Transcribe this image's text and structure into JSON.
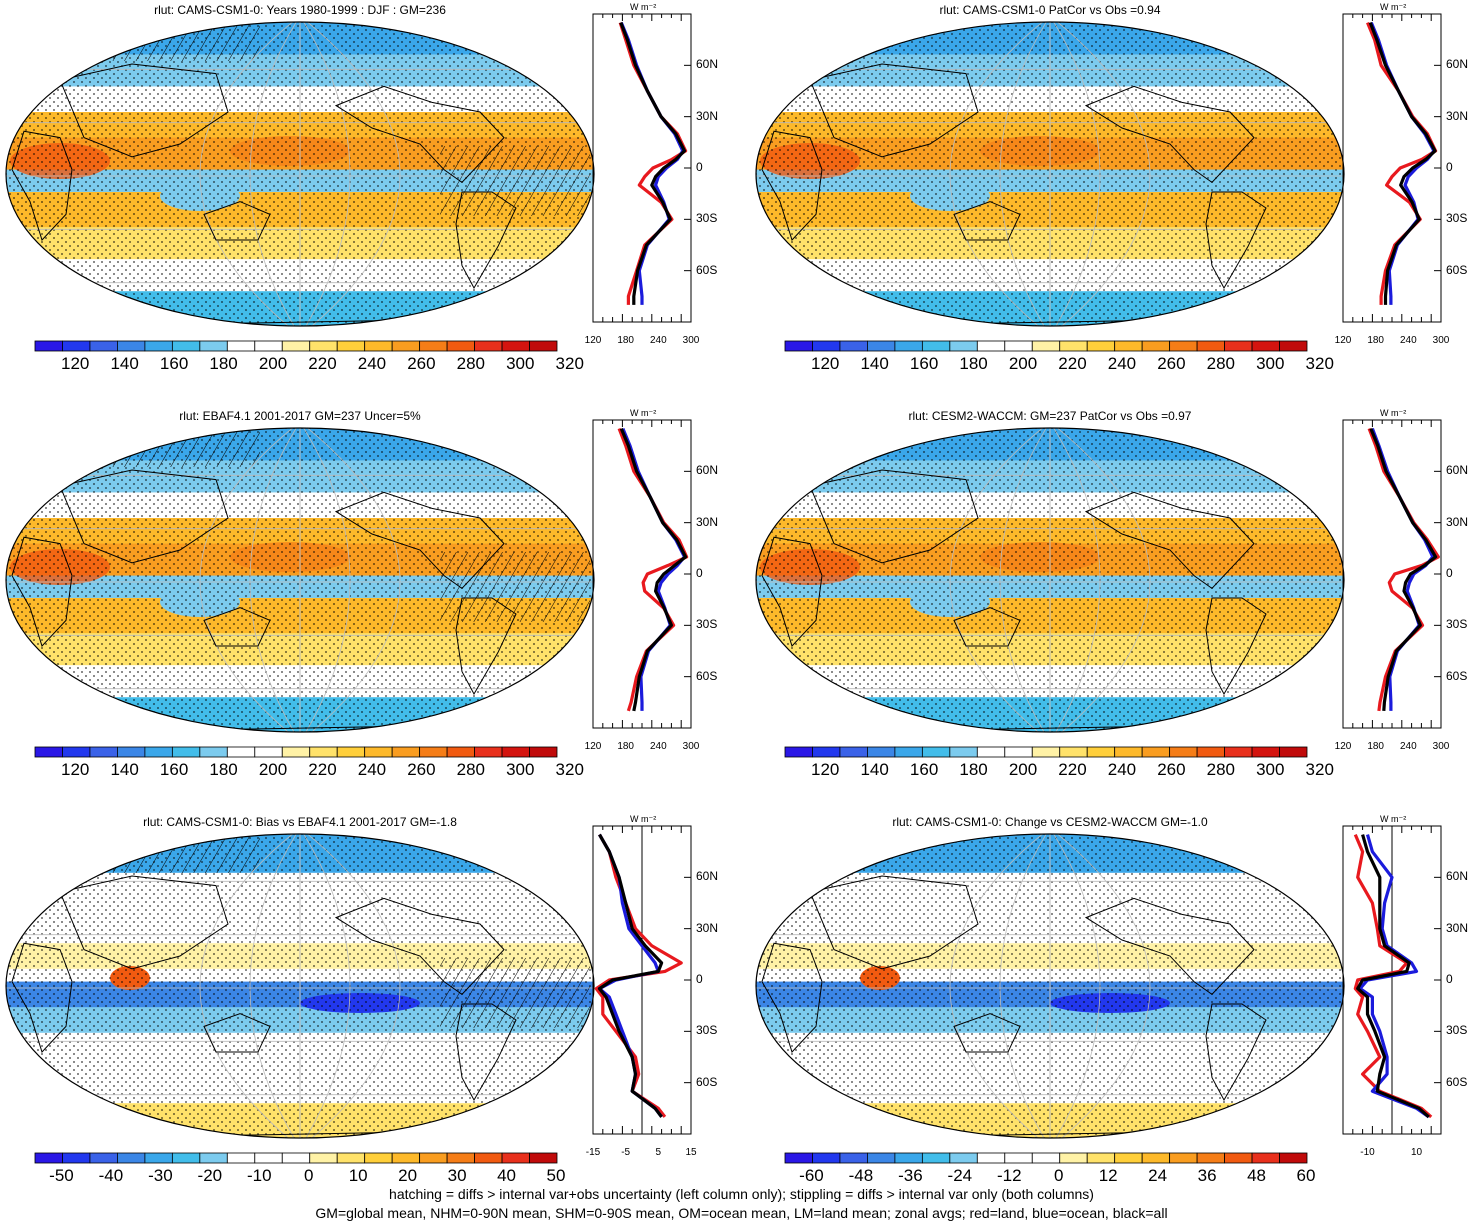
{
  "variable": "rlut",
  "profile_unit": "W m⁻²",
  "latitude_labels": [
    "60N",
    "30N",
    "0",
    "30S",
    "60S"
  ],
  "legend_colors": {
    "land": "#e8191e",
    "ocean": "#1b1bdc",
    "all": "#000000"
  },
  "footer": {
    "line1": "hatching = diffs > internal var+obs uncertainty (left column only); stippling = diffs > internal var only (both columns)",
    "line2": "GM=global mean, NHM=0-90N mean, SHM=0-90S mean, OM=ocean mean, LM=land mean; zonal avgs; red=land, blue=ocean, black=all"
  },
  "panels": [
    {
      "id": "p1",
      "title": "rlut: CAMS-CSM1-0: Years 1980-1999 : DJF : GM=236",
      "kind": "mean",
      "hatching": true,
      "colorbar_labels": [
        "120",
        "140",
        "160",
        "180",
        "200",
        "220",
        "240",
        "260",
        "280",
        "300",
        "320"
      ],
      "profile_x_labels": [
        "120",
        "180",
        "240",
        "300"
      ],
      "chart_data": {
        "type": "line",
        "xlim": [
          120,
          300
        ],
        "ylim": [
          -90,
          90
        ],
        "lat": [
          85,
          75,
          60,
          45,
          30,
          20,
          10,
          5,
          0,
          -5,
          -10,
          -20,
          -30,
          -45,
          -60,
          -75,
          -80
        ],
        "series": [
          {
            "name": "land",
            "values": [
              170,
              180,
              195,
              220,
              245,
              275,
              290,
              265,
              230,
              215,
              205,
              245,
              265,
              215,
              200,
              185,
              185
            ]
          },
          {
            "name": "ocean",
            "values": [
              172,
              185,
              200,
              220,
              245,
              270,
              285,
              275,
              255,
              240,
              235,
              250,
              260,
              220,
              205,
              210,
              210
            ]
          },
          {
            "name": "all",
            "values": [
              171,
              183,
              198,
              220,
              245,
              272,
              288,
              272,
              250,
              235,
              228,
              248,
              262,
              218,
              202,
              195,
              195
            ]
          }
        ]
      }
    },
    {
      "id": "p2",
      "title": "rlut: CAMS-CSM1-0 PatCor vs Obs =0.94",
      "kind": "mean",
      "hatching": false,
      "colorbar_labels": [
        "120",
        "140",
        "160",
        "180",
        "200",
        "220",
        "240",
        "260",
        "280",
        "300",
        "320"
      ],
      "profile_x_labels": [
        "120",
        "180",
        "240",
        "300"
      ],
      "chart_data": {
        "type": "line",
        "xlim": [
          120,
          300
        ],
        "ylim": [
          -90,
          90
        ],
        "lat": [
          85,
          75,
          60,
          45,
          30,
          20,
          10,
          5,
          0,
          -5,
          -10,
          -20,
          -30,
          -45,
          -60,
          -75,
          -80
        ],
        "series": [
          {
            "name": "land",
            "values": [
              165,
              178,
              190,
              222,
              248,
              275,
              290,
              265,
              225,
              210,
              200,
              242,
              262,
              215,
              198,
              190,
              190
            ]
          },
          {
            "name": "ocean",
            "values": [
              172,
              185,
              200,
              222,
              246,
              270,
              287,
              275,
              255,
              240,
              234,
              250,
              258,
              220,
              205,
              208,
              208
            ]
          },
          {
            "name": "all",
            "values": [
              170,
              182,
              198,
              222,
              246,
              272,
              289,
              272,
              248,
              232,
              226,
              247,
              260,
              218,
              202,
              198,
              198
            ]
          }
        ]
      }
    },
    {
      "id": "p3",
      "title": "rlut: EBAF4.1 2001-2017 GM=237 Uncer=5%",
      "kind": "mean",
      "hatching": true,
      "colorbar_labels": [
        "120",
        "140",
        "160",
        "180",
        "200",
        "220",
        "240",
        "260",
        "280",
        "300",
        "320"
      ],
      "profile_x_labels": [
        "120",
        "180",
        "240",
        "300"
      ],
      "chart_data": {
        "type": "line",
        "xlim": [
          120,
          300
        ],
        "ylim": [
          -90,
          90
        ],
        "lat": [
          85,
          75,
          60,
          45,
          30,
          20,
          10,
          5,
          0,
          -5,
          -10,
          -20,
          -30,
          -45,
          -60,
          -75,
          -80
        ],
        "series": [
          {
            "name": "land",
            "values": [
              168,
              180,
              195,
              225,
              250,
              278,
              292,
              258,
              220,
              212,
              215,
              250,
              268,
              218,
              200,
              190,
              185
            ]
          },
          {
            "name": "ocean",
            "values": [
              175,
              188,
              203,
              225,
              248,
              272,
              288,
              275,
              258,
              245,
              240,
              252,
              262,
              222,
              208,
              210,
              210
            ]
          },
          {
            "name": "all",
            "values": [
              172,
              185,
              200,
              225,
              248,
              274,
              290,
              270,
              250,
              238,
              235,
              251,
              264,
              220,
              205,
              198,
              195
            ]
          }
        ]
      }
    },
    {
      "id": "p4",
      "title": "rlut: CESM2-WACCM: GM=237 PatCor vs Obs =0.97",
      "kind": "mean",
      "hatching": false,
      "colorbar_labels": [
        "120",
        "140",
        "160",
        "180",
        "200",
        "220",
        "240",
        "260",
        "280",
        "300",
        "320"
      ],
      "profile_x_labels": [
        "120",
        "180",
        "240",
        "300"
      ],
      "chart_data": {
        "type": "line",
        "xlim": [
          120,
          300
        ],
        "ylim": [
          -90,
          90
        ],
        "lat": [
          85,
          75,
          60,
          45,
          30,
          20,
          10,
          5,
          0,
          -5,
          -10,
          -20,
          -30,
          -45,
          -60,
          -75,
          -80
        ],
        "series": [
          {
            "name": "land",
            "values": [
              168,
              180,
              195,
              224,
              250,
              275,
              295,
              265,
              215,
              205,
              210,
              248,
              266,
              216,
              198,
              188,
              186
            ]
          },
          {
            "name": "ocean",
            "values": [
              174,
              186,
              202,
              224,
              248,
              270,
              285,
              272,
              250,
              242,
              238,
              250,
              260,
              220,
              206,
              208,
              208
            ]
          },
          {
            "name": "all",
            "values": [
              171,
              184,
              199,
              224,
              248,
              272,
              290,
              270,
              244,
              235,
              232,
              249,
              262,
              218,
              203,
              196,
              195
            ]
          }
        ]
      }
    },
    {
      "id": "p5",
      "title": "rlut: CAMS-CSM1-0: Bias vs EBAF4.1 2001-2017 GM=-1.8",
      "kind": "bias",
      "hatching": true,
      "colorbar_labels": [
        "-50",
        "-40",
        "-30",
        "-20",
        "-10",
        "0",
        "10",
        "20",
        "30",
        "40",
        "50"
      ],
      "profile_x_labels": [
        "-15",
        "-5",
        "5",
        "15"
      ],
      "chart_data": {
        "type": "line",
        "xlim": [
          -15,
          15
        ],
        "ylim": [
          -90,
          90
        ],
        "lat": [
          85,
          75,
          60,
          45,
          30,
          20,
          10,
          5,
          0,
          -5,
          -10,
          -20,
          -30,
          -45,
          -55,
          -65,
          -75,
          -80
        ],
        "series": [
          {
            "name": "land",
            "values": [
              -13,
              -10,
              -8,
              -5,
              -2,
              3,
              12,
              7,
              -10,
              -14,
              -12,
              -12,
              -8,
              -2,
              -1,
              -3,
              5,
              7
            ]
          },
          {
            "name": "ocean",
            "values": [
              -13,
              -10,
              -7,
              -6,
              -4,
              0,
              4,
              5,
              -8,
              -13,
              -10,
              -8,
              -6,
              -3,
              -2,
              -3,
              4,
              6
            ]
          },
          {
            "name": "all",
            "values": [
              -13,
              -10,
              -7,
              -5,
              -3,
              1,
              6,
              5,
              -9,
              -13,
              -11,
              -9,
              -7,
              -3,
              -2,
              -3,
              4,
              6
            ]
          }
        ]
      }
    },
    {
      "id": "p6",
      "title": "rlut: CAMS-CSM1-0: Change vs CESM2-WACCM GM=-1.0",
      "kind": "bias",
      "hatching": false,
      "colorbar_labels": [
        "-60",
        "-48",
        "-36",
        "-24",
        "-12",
        "0",
        "12",
        "24",
        "36",
        "48",
        "60"
      ],
      "profile_x_labels": [
        "-10",
        "10"
      ],
      "chart_data": {
        "type": "line",
        "xlim": [
          -20,
          20
        ],
        "ylim": [
          -90,
          90
        ],
        "lat": [
          85,
          75,
          60,
          45,
          30,
          20,
          10,
          5,
          0,
          -5,
          -10,
          -20,
          -30,
          -45,
          -55,
          -65,
          -75,
          -80
        ],
        "series": [
          {
            "name": "land",
            "values": [
              -15,
              -12,
              -14,
              -8,
              -6,
              -5,
              6,
              3,
              -14,
              -15,
              -12,
              -14,
              -10,
              -5,
              -12,
              -5,
              12,
              16
            ]
          },
          {
            "name": "ocean",
            "values": [
              -10,
              -8,
              0,
              -3,
              -4,
              -2,
              8,
              10,
              -10,
              -13,
              -8,
              -8,
              -5,
              -2,
              -2,
              -8,
              10,
              15
            ]
          },
          {
            "name": "all",
            "values": [
              -12,
              -10,
              -5,
              -5,
              -5,
              -3,
              7,
              6,
              -12,
              -14,
              -10,
              -10,
              -7,
              -3,
              -5,
              -6,
              11,
              15
            ]
          }
        ]
      }
    }
  ]
}
